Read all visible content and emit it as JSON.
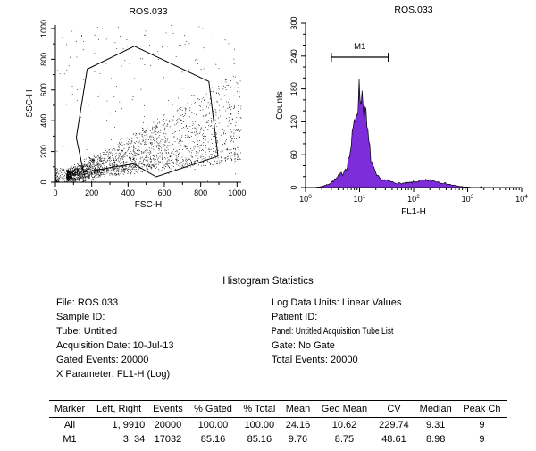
{
  "chart_data": [
    {
      "type": "scatter",
      "title": "ROS.033",
      "xlabel": "FSC-H",
      "ylabel": "SSC-H",
      "xlim": [
        0,
        1023
      ],
      "ylim": [
        0,
        1023
      ],
      "ticks": [
        0,
        200,
        400,
        600,
        800,
        1000
      ],
      "n_points": 2600,
      "seed": 42,
      "description": "Dense forward/side scatter cloud rising from lower-left toward mid-right, enclosed by a polygon gate",
      "gate_polygon": [
        [
          115,
          290
        ],
        [
          175,
          735
        ],
        [
          435,
          885
        ],
        [
          845,
          655
        ],
        [
          895,
          170
        ],
        [
          555,
          35
        ],
        [
          430,
          120
        ],
        [
          155,
          65
        ]
      ]
    },
    {
      "type": "area",
      "title": "ROS.033",
      "xlabel": "FL1-H",
      "ylabel": "Counts",
      "x_scale": "log10",
      "decades": [
        0,
        1,
        2,
        3,
        4
      ],
      "ylim": [
        0,
        300
      ],
      "yticks": [
        0,
        60,
        120,
        180,
        240,
        300
      ],
      "fill_color": "#7D2EDA",
      "bins": 220,
      "seed": 7,
      "peaks": [
        {
          "center": 1.02,
          "sigma": 0.115,
          "amp": 150
        },
        {
          "center": 0.8,
          "sigma": 0.22,
          "amp": 28
        },
        {
          "center": 1.35,
          "sigma": 0.25,
          "amp": 14
        },
        {
          "center": 2.25,
          "sigma": 0.32,
          "amp": 13
        }
      ],
      "marker": {
        "label": "M1",
        "left": 3,
        "right": 34,
        "counts_y": 238
      }
    }
  ],
  "stats": {
    "heading": "Histogram Statistics",
    "left": [
      "File: ROS.033",
      "Sample ID: ",
      "Tube: Untitled",
      "Acquisition Date: 10-Jul-13",
      "Gated Events: 20000",
      "X Parameter: FL1-H (Log)"
    ],
    "right": [
      "Log Data Units: Linear Values",
      "Patient ID: ",
      "Panel: Untitled Acquisition Tube List",
      "Gate: No Gate",
      "Total Events: 20000"
    ]
  },
  "table": {
    "headers": [
      "Marker",
      "Left, Right",
      "Events",
      "% Gated",
      "% Total",
      "Mean",
      "Geo Mean",
      "CV",
      "Median",
      "Peak Ch"
    ],
    "rows": [
      [
        "All",
        "1, 9910",
        "20000",
        "100.00",
        "100.00",
        "24.16",
        "10.62",
        "229.74",
        "9.31",
        "9"
      ],
      [
        "M1",
        "3, 34",
        "17032",
        "85.16",
        "85.16",
        "9.76",
        "8.75",
        "48.61",
        "8.98",
        "9"
      ]
    ]
  }
}
